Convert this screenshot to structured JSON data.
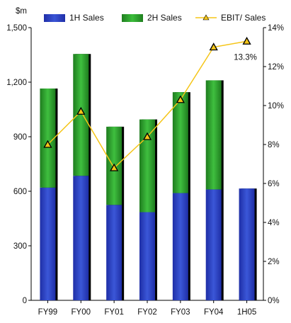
{
  "chart_data": {
    "type": "bar",
    "title": "",
    "y_left_unit": "$m",
    "categories": [
      "FY99",
      "FY00",
      "FY01",
      "FY02",
      "FY03",
      "FY04",
      "1H05"
    ],
    "series": [
      {
        "name": "1H Sales",
        "type": "bar",
        "axis": "left",
        "color": "#2a3ec2",
        "values": [
          620,
          685,
          525,
          485,
          590,
          610,
          615
        ]
      },
      {
        "name": "2H Sales",
        "type": "bar",
        "axis": "left",
        "color": "#2e9e2e",
        "values": [
          545,
          670,
          430,
          510,
          555,
          600,
          0
        ]
      },
      {
        "name": "EBIT/ Sales",
        "type": "line",
        "axis": "right",
        "color": "#f5c518",
        "marker": "triangle",
        "values": [
          8.0,
          9.7,
          6.8,
          8.4,
          10.3,
          13.0,
          13.3
        ]
      }
    ],
    "y_left": {
      "min": 0,
      "max": 1500,
      "ticks": [
        0,
        300,
        600,
        900,
        1200,
        1500
      ],
      "tick_labels": [
        "0",
        "300",
        "600",
        "900",
        "1,200",
        "1,500"
      ]
    },
    "y_right": {
      "min": 0,
      "max": 14,
      "ticks": [
        0,
        2,
        4,
        6,
        8,
        10,
        12,
        14
      ],
      "tick_labels": [
        "0%",
        "2%",
        "4%",
        "6%",
        "8%",
        "10%",
        "12%",
        "14%"
      ]
    },
    "stacked": true,
    "grid": false,
    "legend_position": "top",
    "annotations": [
      {
        "series": "EBIT/ Sales",
        "index": 6,
        "text": "13.3%"
      }
    ]
  }
}
